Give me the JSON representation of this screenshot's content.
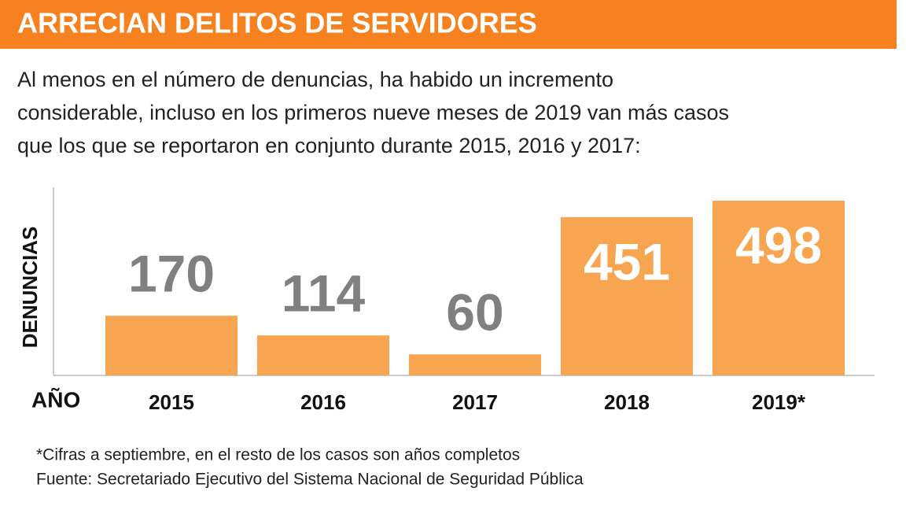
{
  "chart_data": {
    "type": "bar",
    "title": "ARRECIAN DELITOS DE SERVIDORES",
    "subtitle": [
      "Al menos en el número de denuncias, ha habido un incremento",
      "considerable, incluso en los primeros nueve meses de 2019 van más casos",
      "que los que se reportaron en conjunto durante 2015, 2016 y 2017:"
    ],
    "ylabel": "DENUNCIAS",
    "xlabel": "AÑO",
    "categories": [
      "2015",
      "2016",
      "2017",
      "2018",
      "2019*"
    ],
    "values": [
      170,
      114,
      60,
      451,
      498
    ],
    "color": "#f7a550",
    "notes": [
      "*Cifras a septiembre, en el resto de los casos son años completos",
      "Fuente: Secretariado Ejecutivo del Sistema Nacional de Seguridad Pública"
    ]
  }
}
